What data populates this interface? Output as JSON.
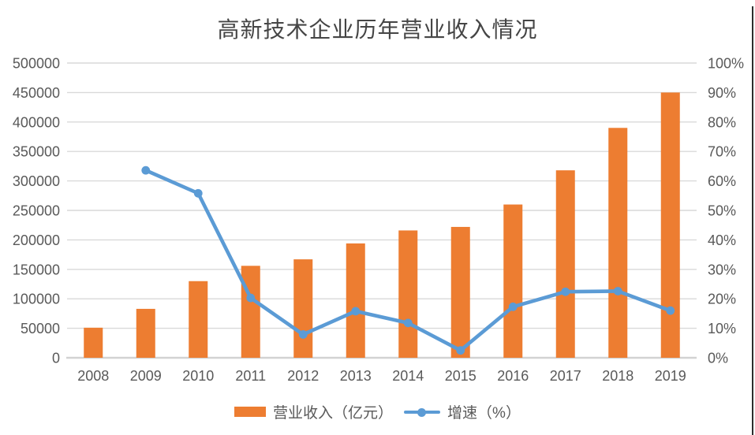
{
  "chart_data": {
    "type": "combo",
    "title": "高新技术企业历年营业收入情况",
    "categories": [
      "2008",
      "2009",
      "2010",
      "2011",
      "2012",
      "2013",
      "2014",
      "2015",
      "2016",
      "2017",
      "2018",
      "2019"
    ],
    "series": [
      {
        "name": "营业收入（亿元）",
        "type": "bar",
        "axis": "left",
        "color": "#ED7D31",
        "values": [
          51000,
          83000,
          130000,
          156000,
          167000,
          194000,
          216000,
          222000,
          260000,
          318000,
          390000,
          450000
        ]
      },
      {
        "name": "增速（%）",
        "type": "line",
        "axis": "right",
        "color": "#5B9BD5",
        "values": [
          null,
          63.6,
          55.8,
          20.3,
          7.9,
          15.8,
          11.8,
          2.5,
          17.3,
          22.4,
          22.6,
          16.0
        ]
      }
    ],
    "left_axis": {
      "min": 0,
      "max": 500000,
      "tick_labels": [
        "0",
        "50000",
        "100000",
        "150000",
        "200000",
        "250000",
        "300000",
        "350000",
        "400000",
        "450000",
        "500000"
      ]
    },
    "right_axis": {
      "min": 0,
      "max": 100,
      "tick_labels": [
        "0%",
        "10%",
        "20%",
        "30%",
        "40%",
        "50%",
        "60%",
        "70%",
        "80%",
        "90%",
        "100%"
      ]
    },
    "legend_position": "bottom",
    "grid": true,
    "colors": {
      "gridline": "#D9D9D9",
      "axis_line": "#D2D2D2",
      "tick_text": "#595959",
      "title_text": "#454545"
    }
  }
}
